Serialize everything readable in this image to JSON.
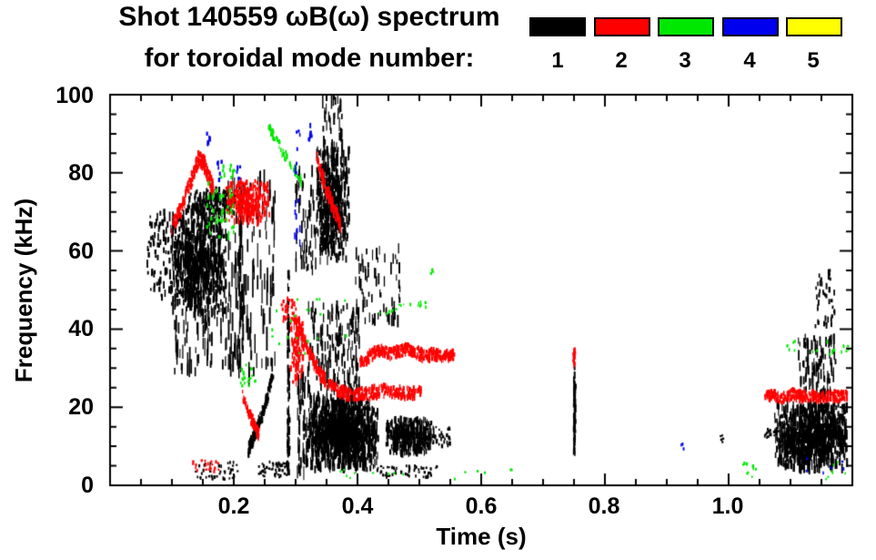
{
  "chart_data": {
    "type": "scatter",
    "title": "Shot 140559 ωB(ω) spectrum",
    "subtitle": "for toroidal mode number:",
    "xlabel": "Time (s)",
    "ylabel": "Frequency (kHz)",
    "xlim": [
      0,
      1.2
    ],
    "ylim": [
      0,
      100
    ],
    "grid": false,
    "legend_position": "top-right",
    "xticks": {
      "major": [
        0.2,
        0.4,
        0.6,
        0.8,
        1.0
      ],
      "labels": [
        "0.2",
        "0.4",
        "0.6",
        "0.8",
        "1.0"
      ],
      "minor_step": 0.05
    },
    "yticks": {
      "major": [
        0,
        20,
        40,
        60,
        80,
        100
      ],
      "labels": [
        "0",
        "20",
        "40",
        "60",
        "80",
        "100"
      ],
      "minor_step": 5
    },
    "modes": [
      {
        "n": 1,
        "label": "1",
        "color": "#000000"
      },
      {
        "n": 2,
        "label": "2",
        "color": "#ff0000"
      },
      {
        "n": 3,
        "label": "3",
        "color": "#00e800"
      },
      {
        "n": 4,
        "label": "4",
        "color": "#0000ee"
      },
      {
        "n": 5,
        "label": "5",
        "color": "#ffff00"
      }
    ],
    "features": [
      {
        "m": 1,
        "ty": "specks",
        "t": [
          0.058,
          0.098
        ],
        "f": [
          48,
          70
        ],
        "n": 70,
        "h": [
          3,
          9
        ]
      },
      {
        "m": 1,
        "ty": "blob",
        "t": [
          0.095,
          0.187
        ],
        "f": [
          44,
          71
        ],
        "n": 750,
        "h": [
          4,
          12
        ]
      },
      {
        "m": 1,
        "ty": "streaks",
        "t": [
          0.1,
          0.195
        ],
        "f": [
          29,
          46
        ],
        "n": 80,
        "h": [
          6,
          20
        ]
      },
      {
        "m": 1,
        "ty": "blob",
        "t": [
          0.125,
          0.205
        ],
        "f": [
          69,
          76
        ],
        "n": 200,
        "h": [
          3,
          7
        ]
      },
      {
        "m": 1,
        "ty": "streaks",
        "t": [
          0.19,
          0.268
        ],
        "f": [
          28,
          78
        ],
        "n": 120,
        "h": [
          8,
          28
        ]
      },
      {
        "m": 1,
        "ty": "streaks",
        "t": [
          0.205,
          0.214
        ],
        "f": [
          30,
          72
        ],
        "n": 45,
        "h": [
          8,
          24
        ]
      },
      {
        "m": 1,
        "ty": "path",
        "pts": [
          [
            0.222,
            9
          ],
          [
            0.235,
            14
          ],
          [
            0.248,
            20
          ],
          [
            0.262,
            28
          ]
        ],
        "j": 1.4,
        "n": 150,
        "h": [
          3,
          7
        ]
      },
      {
        "m": 1,
        "ty": "specks",
        "t": [
          0.238,
          0.288
        ],
        "f": [
          2,
          6
        ],
        "n": 55,
        "h": [
          2,
          4
        ]
      },
      {
        "m": 1,
        "ty": "vline",
        "t": [
          0.285,
          0.289
        ],
        "f": [
          3,
          55
        ],
        "n": 80,
        "h": [
          4,
          10
        ]
      },
      {
        "m": 1,
        "ty": "blob",
        "t": [
          0.333,
          0.385
        ],
        "f": [
          57,
          86
        ],
        "n": 480,
        "h": [
          4,
          11
        ]
      },
      {
        "m": 1,
        "ty": "streaks",
        "t": [
          0.34,
          0.374
        ],
        "f": [
          85,
          100
        ],
        "n": 40,
        "h": [
          6,
          18
        ]
      },
      {
        "m": 1,
        "ty": "streaks",
        "t": [
          0.298,
          0.335
        ],
        "f": [
          55,
          82
        ],
        "n": 60,
        "h": [
          5,
          16
        ]
      },
      {
        "m": 1,
        "ty": "blob",
        "t": [
          0.316,
          0.432
        ],
        "f": [
          4,
          22
        ],
        "n": 1100,
        "h": [
          4,
          12
        ]
      },
      {
        "m": 1,
        "ty": "streaks",
        "t": [
          0.318,
          0.402
        ],
        "f": [
          21,
          46
        ],
        "n": 200,
        "h": [
          5,
          15
        ]
      },
      {
        "m": 1,
        "ty": "streaks",
        "t": [
          0.302,
          0.317
        ],
        "f": [
          2,
          28
        ],
        "n": 45,
        "h": [
          6,
          18
        ]
      },
      {
        "m": 1,
        "ty": "streaks",
        "t": [
          0.395,
          0.468
        ],
        "f": [
          42,
          61
        ],
        "n": 70,
        "h": [
          5,
          14
        ]
      },
      {
        "m": 1,
        "ty": "blob",
        "t": [
          0.445,
          0.522
        ],
        "f": [
          8,
          17
        ],
        "n": 380,
        "h": [
          3,
          9
        ]
      },
      {
        "m": 1,
        "ty": "specks",
        "t": [
          0.43,
          0.527
        ],
        "f": [
          2,
          5
        ],
        "n": 60,
        "h": [
          2,
          4
        ]
      },
      {
        "m": 1,
        "ty": "specks",
        "t": [
          0.522,
          0.552
        ],
        "f": [
          10,
          15
        ],
        "n": 30,
        "h": [
          2,
          5
        ]
      },
      {
        "m": 1,
        "ty": "vline",
        "t": [
          0.748,
          0.7515
        ],
        "f": [
          8,
          30
        ],
        "n": 60,
        "h": [
          3,
          9
        ]
      },
      {
        "m": 1,
        "ty": "specks",
        "t": [
          0.984,
          0.992
        ],
        "f": [
          11,
          13
        ],
        "n": 5,
        "h": [
          2,
          3
        ]
      },
      {
        "m": 1,
        "ty": "blob",
        "t": [
          1.073,
          1.19
        ],
        "f": [
          4,
          21
        ],
        "n": 900,
        "h": [
          4,
          12
        ]
      },
      {
        "m": 1,
        "ty": "streaks",
        "t": [
          1.112,
          1.172
        ],
        "f": [
          23,
          38
        ],
        "n": 110,
        "h": [
          5,
          13
        ]
      },
      {
        "m": 1,
        "ty": "specks",
        "t": [
          1.138,
          1.172
        ],
        "f": [
          40,
          55
        ],
        "n": 40,
        "h": [
          3,
          7
        ]
      },
      {
        "m": 1,
        "ty": "specks",
        "t": [
          0.135,
          0.205
        ],
        "f": [
          1.5,
          6
        ],
        "n": 40,
        "h": [
          2,
          4
        ]
      },
      {
        "m": 1,
        "ty": "specks",
        "t": [
          1.056,
          1.08
        ],
        "f": [
          12,
          14.5
        ],
        "n": 22,
        "h": [
          2,
          4
        ]
      },
      {
        "m": 2,
        "ty": "path",
        "pts": [
          [
            0.098,
            66
          ],
          [
            0.112,
            70
          ],
          [
            0.128,
            77
          ],
          [
            0.141,
            83.5
          ],
          [
            0.149,
            83
          ],
          [
            0.158,
            79
          ],
          [
            0.166,
            75.5
          ]
        ],
        "j": 1.8,
        "n": 210,
        "h": [
          3,
          7
        ]
      },
      {
        "m": 2,
        "ty": "blob",
        "t": [
          0.185,
          0.258
        ],
        "f": [
          67,
          78
        ],
        "n": 300,
        "h": [
          3,
          8
        ]
      },
      {
        "m": 2,
        "ty": "path",
        "pts": [
          [
            0.213,
            23
          ],
          [
            0.224,
            18
          ],
          [
            0.233,
            15
          ],
          [
            0.239,
            13
          ]
        ],
        "j": 1.4,
        "n": 80,
        "h": [
          3,
          6
        ]
      },
      {
        "m": 2,
        "ty": "specks",
        "t": [
          0.128,
          0.175
        ],
        "f": [
          3.5,
          6.5
        ],
        "n": 22,
        "h": [
          2,
          4
        ]
      },
      {
        "m": 2,
        "ty": "blob",
        "t": [
          0.29,
          0.312
        ],
        "f": [
          25,
          43
        ],
        "n": 110,
        "h": [
          3,
          8
        ]
      },
      {
        "m": 2,
        "ty": "specks",
        "t": [
          0.275,
          0.3
        ],
        "f": [
          42,
          48
        ],
        "n": 30,
        "h": [
          2,
          5
        ]
      },
      {
        "m": 2,
        "ty": "path",
        "pts": [
          [
            0.295,
            44
          ],
          [
            0.308,
            39
          ],
          [
            0.322,
            33.5
          ],
          [
            0.338,
            28.5
          ],
          [
            0.352,
            26
          ],
          [
            0.368,
            24.3
          ],
          [
            0.385,
            23.2
          ],
          [
            0.405,
            23.3
          ],
          [
            0.425,
            23.8
          ],
          [
            0.445,
            24.2
          ],
          [
            0.465,
            23.8
          ],
          [
            0.485,
            23.5
          ],
          [
            0.502,
            23.8
          ]
        ],
        "j": 1.5,
        "n": 380,
        "h": [
          3,
          7
        ]
      },
      {
        "m": 2,
        "ty": "path",
        "pts": [
          [
            0.402,
            31.5
          ],
          [
            0.418,
            33
          ],
          [
            0.433,
            34.5
          ],
          [
            0.449,
            33.6
          ],
          [
            0.464,
            34.2
          ],
          [
            0.479,
            35
          ],
          [
            0.495,
            33.8
          ],
          [
            0.51,
            33.2
          ],
          [
            0.525,
            33.4
          ],
          [
            0.54,
            33
          ],
          [
            0.555,
            33.2
          ]
        ],
        "j": 1.4,
        "n": 330,
        "h": [
          3,
          7
        ]
      },
      {
        "m": 2,
        "ty": "path",
        "pts": [
          [
            0.333,
            84
          ],
          [
            0.341,
            79.5
          ],
          [
            0.349,
            75.5
          ],
          [
            0.357,
            72
          ],
          [
            0.364,
            69.5
          ],
          [
            0.371,
            66.5
          ]
        ],
        "j": 1.8,
        "n": 120,
        "h": [
          3,
          7
        ]
      },
      {
        "m": 2,
        "ty": "vline",
        "t": [
          0.747,
          0.7505
        ],
        "f": [
          30,
          35
        ],
        "n": 22,
        "h": [
          3,
          6
        ]
      },
      {
        "m": 2,
        "ty": "path",
        "pts": [
          [
            1.057,
            22.6
          ],
          [
            1.072,
            23
          ],
          [
            1.087,
            22.2
          ],
          [
            1.102,
            23.4
          ],
          [
            1.117,
            22.8
          ],
          [
            1.132,
            23
          ],
          [
            1.147,
            22.4
          ],
          [
            1.162,
            23
          ],
          [
            1.177,
            22.6
          ],
          [
            1.192,
            23
          ]
        ],
        "j": 1.3,
        "n": 280,
        "h": [
          3,
          6
        ]
      },
      {
        "m": 3,
        "ty": "specks",
        "t": [
          0.155,
          0.2
        ],
        "f": [
          63,
          82
        ],
        "n": 50,
        "h": [
          3,
          6
        ]
      },
      {
        "m": 3,
        "ty": "path",
        "pts": [
          [
            0.255,
            91.5
          ],
          [
            0.27,
            87.5
          ],
          [
            0.284,
            84
          ],
          [
            0.296,
            81
          ],
          [
            0.308,
            78
          ]
        ],
        "j": 1.2,
        "n": 60,
        "h": [
          3,
          6
        ]
      },
      {
        "m": 3,
        "ty": "specks",
        "t": [
          0.208,
          0.235
        ],
        "f": [
          25,
          31
        ],
        "n": 20,
        "h": [
          2,
          4
        ]
      },
      {
        "m": 3,
        "ty": "specks",
        "t": [
          0.26,
          0.38
        ],
        "f": [
          33,
          48
        ],
        "n": 20,
        "h": [
          2,
          4
        ]
      },
      {
        "m": 3,
        "ty": "path",
        "pts": [
          [
            0.432,
            43.5
          ],
          [
            0.455,
            45.2
          ],
          [
            0.478,
            45.9
          ],
          [
            0.5,
            46.3
          ],
          [
            0.515,
            46
          ]
        ],
        "j": 0.8,
        "n": 20,
        "h": [
          2,
          4
        ]
      },
      {
        "m": 3,
        "ty": "specks",
        "t": [
          0.516,
          0.522
        ],
        "f": [
          54,
          56
        ],
        "n": 4,
        "h": [
          2,
          3
        ]
      },
      {
        "m": 3,
        "ty": "specks",
        "t": [
          0.335,
          0.48
        ],
        "f": [
          1.5,
          4
        ],
        "n": 9,
        "h": [
          2,
          3
        ]
      },
      {
        "m": 3,
        "ty": "specks",
        "t": [
          0.555,
          0.65
        ],
        "f": [
          1.5,
          4
        ],
        "n": 6,
        "h": [
          2,
          3
        ]
      },
      {
        "m": 3,
        "ty": "specks",
        "t": [
          1.018,
          1.045
        ],
        "f": [
          2,
          6
        ],
        "n": 9,
        "h": [
          2,
          4
        ]
      },
      {
        "m": 3,
        "ty": "specks",
        "t": [
          1.09,
          1.195
        ],
        "f": [
          33,
          37
        ],
        "n": 18,
        "h": [
          2,
          4
        ]
      },
      {
        "m": 3,
        "ty": "specks",
        "t": [
          1.15,
          1.195
        ],
        "f": [
          1,
          6
        ],
        "n": 7,
        "h": [
          2,
          3
        ]
      },
      {
        "m": 4,
        "ty": "specks",
        "t": [
          0.155,
          0.161
        ],
        "f": [
          87,
          92
        ],
        "n": 6,
        "h": [
          3,
          6
        ]
      },
      {
        "m": 4,
        "ty": "specks",
        "t": [
          0.171,
          0.179
        ],
        "f": [
          78,
          83
        ],
        "n": 6,
        "h": [
          3,
          6
        ]
      },
      {
        "m": 4,
        "ty": "specks",
        "t": [
          0.202,
          0.209
        ],
        "f": [
          77,
          82
        ],
        "n": 5,
        "h": [
          3,
          6
        ]
      },
      {
        "m": 4,
        "ty": "streaks",
        "t": [
          0.296,
          0.306
        ],
        "f": [
          62,
          73
        ],
        "n": 10,
        "h": [
          4,
          9
        ]
      },
      {
        "m": 4,
        "ty": "specks",
        "t": [
          0.297,
          0.303
        ],
        "f": [
          78,
          83
        ],
        "n": 4,
        "h": [
          3,
          5
        ]
      },
      {
        "m": 4,
        "ty": "specks",
        "t": [
          0.3,
          0.306
        ],
        "f": [
          86,
          91
        ],
        "n": 4,
        "h": [
          3,
          5
        ]
      },
      {
        "m": 4,
        "ty": "specks",
        "t": [
          0.318,
          0.324
        ],
        "f": [
          86,
          93
        ],
        "n": 7,
        "h": [
          3,
          6
        ]
      },
      {
        "m": 4,
        "ty": "specks",
        "t": [
          0.921,
          0.926
        ],
        "f": [
          9,
          11
        ],
        "n": 3,
        "h": [
          3,
          4
        ]
      },
      {
        "m": 4,
        "ty": "specks",
        "t": [
          1.1,
          1.19
        ],
        "f": [
          3,
          7
        ],
        "n": 6,
        "h": [
          2,
          4
        ]
      }
    ]
  }
}
